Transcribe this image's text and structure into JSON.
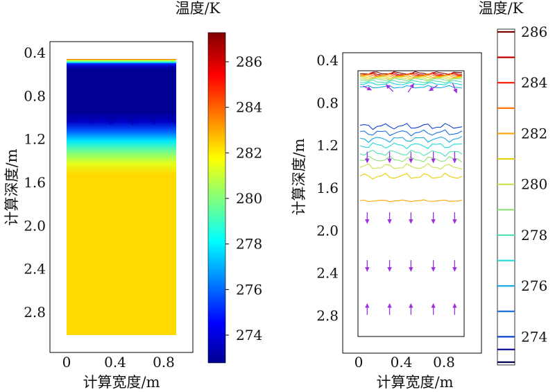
{
  "chart_data": [
    {
      "type": "heatmap",
      "title": "",
      "xlabel": "计算宽度/m",
      "ylabel": "计算深度/m",
      "xlim": [
        -0.05,
        1.0
      ],
      "ylim": [
        0.35,
        3.0
      ],
      "y_inverted": true,
      "x_ticks": [
        "0",
        "0.4",
        "0.8"
      ],
      "y_ticks": [
        "0.4",
        "0.8",
        "1.2",
        "1.6",
        "2.0",
        "2.4",
        "2.8"
      ],
      "colorbar": {
        "label": "温度/K",
        "range": [
          273,
          287.2
        ],
        "ticks": [
          "274",
          "276",
          "278",
          "280",
          "282",
          "284",
          "286"
        ]
      },
      "profile": {
        "depth": [
          0.52,
          0.53,
          0.55,
          0.56,
          0.58,
          0.62,
          1.0,
          1.08,
          1.16,
          1.25,
          1.35,
          1.45,
          1.55,
          2.98
        ],
        "temperature": [
          284.6,
          281.5,
          278.5,
          275.5,
          274.0,
          273.3,
          273.3,
          274.0,
          276.0,
          278.0,
          280.0,
          281.5,
          282.4,
          282.4
        ]
      }
    },
    {
      "type": "contour",
      "title": "",
      "xlabel": "计算宽度/m",
      "ylabel": "计算深度/m",
      "xlim": [
        -0.05,
        1.0
      ],
      "ylim": [
        0.35,
        3.0
      ],
      "y_inverted": true,
      "x_ticks": [
        "0",
        "0.4",
        "0.8"
      ],
      "y_ticks": [
        "0.4",
        "0.8",
        "1.2",
        "1.6",
        "2.0",
        "2.4",
        "2.8"
      ],
      "legend": {
        "title": "温度/K",
        "levels": [
          286,
          285,
          284,
          283,
          282,
          281,
          280,
          279,
          278,
          277,
          276,
          275,
          274,
          273.5,
          273
        ],
        "labels": [
          "286",
          "284",
          "282",
          "280",
          "278",
          "276",
          "274"
        ],
        "colors": [
          "#7f0000",
          "#c00000",
          "#ff1a00",
          "#ff7700",
          "#ffa500",
          "#e8d000",
          "#c8e04a",
          "#90e07a",
          "#50e0b0",
          "#20d8d8",
          "#1aa8e8",
          "#1870e0",
          "#1040d0",
          "#000090",
          "#000050"
        ]
      },
      "contour_lines": [
        {
          "level": 286,
          "depth": 0.52
        },
        {
          "level": 285,
          "depth": 0.53
        },
        {
          "level": 284,
          "depth": 0.535
        },
        {
          "level": 283,
          "depth": 0.54
        },
        {
          "level": 282,
          "depth": 0.55
        },
        {
          "level": 281,
          "depth": 0.56
        },
        {
          "level": 280,
          "depth": 0.57
        },
        {
          "level": 279,
          "depth": 0.58
        },
        {
          "level": 278,
          "depth": 0.6
        },
        {
          "level": 277,
          "depth": 0.62
        },
        {
          "level": 276,
          "depth": 0.65
        },
        {
          "level": 274,
          "depth": 1.02
        },
        {
          "level": 275,
          "depth": 1.08
        },
        {
          "level": 276,
          "depth": 1.14
        },
        {
          "level": 277,
          "depth": 1.2
        },
        {
          "level": 278,
          "depth": 1.27
        },
        {
          "level": 279,
          "depth": 1.33
        },
        {
          "level": 280,
          "depth": 1.4
        },
        {
          "level": 281,
          "depth": 1.49
        },
        {
          "level": 282,
          "depth": 1.72
        }
      ],
      "arrow_columns": [
        0.08,
        0.29,
        0.49,
        0.7,
        0.9
      ],
      "arrow_rows": [
        {
          "depth": 0.66,
          "direction": "mixed"
        },
        {
          "depth": 1.31,
          "direction": "down"
        },
        {
          "depth": 1.88,
          "direction": "down"
        },
        {
          "depth": 2.33,
          "direction": "down"
        },
        {
          "depth": 2.74,
          "direction": "up"
        }
      ]
    }
  ]
}
